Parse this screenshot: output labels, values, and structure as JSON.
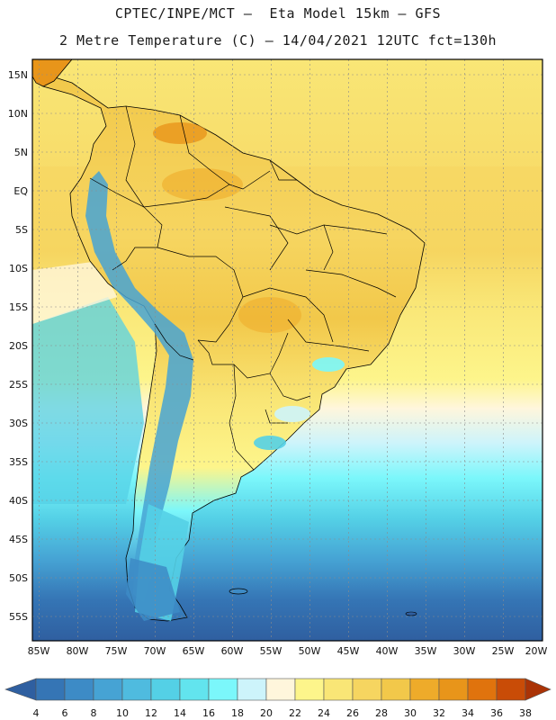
{
  "header": {
    "title_line1": "CPTEC/INPE/MCT –  Eta Model 15km – GFS",
    "title_line2": "2 Metre Temperature (C) – 14/04/2021 12UTC fct=130h"
  },
  "map": {
    "lat_labels": [
      "15N",
      "10N",
      "5N",
      "EQ",
      "5S",
      "10S",
      "15S",
      "20S",
      "25S",
      "30S",
      "35S",
      "40S",
      "45S",
      "50S",
      "55S"
    ],
    "lon_labels": [
      "85W",
      "80W",
      "75W",
      "70W",
      "65W",
      "60W",
      "55W",
      "50W",
      "45W",
      "40W",
      "35W",
      "30W",
      "25W",
      "20W"
    ],
    "lat_range": [
      -58,
      16
    ],
    "lon_range": [
      -86,
      -20
    ],
    "variable": "2 Metre Temperature",
    "units": "C"
  },
  "colorbar": {
    "levels": [
      "4",
      "6",
      "8",
      "10",
      "12",
      "14",
      "16",
      "18",
      "20",
      "22",
      "24",
      "26",
      "28",
      "30",
      "32",
      "34",
      "36",
      "38"
    ],
    "colors": [
      "#2f5fa0",
      "#3575b5",
      "#3d8bc6",
      "#46a3d4",
      "#4fbbdf",
      "#54d0e6",
      "#62e4ee",
      "#7bf7fb",
      "#cdf4fb",
      "#fff6dc",
      "#fdf58b",
      "#f9e676",
      "#f6d560",
      "#f2c84a",
      "#eeab2a",
      "#e8951a",
      "#e0730d",
      "#c94c07",
      "#aa3306"
    ]
  }
}
